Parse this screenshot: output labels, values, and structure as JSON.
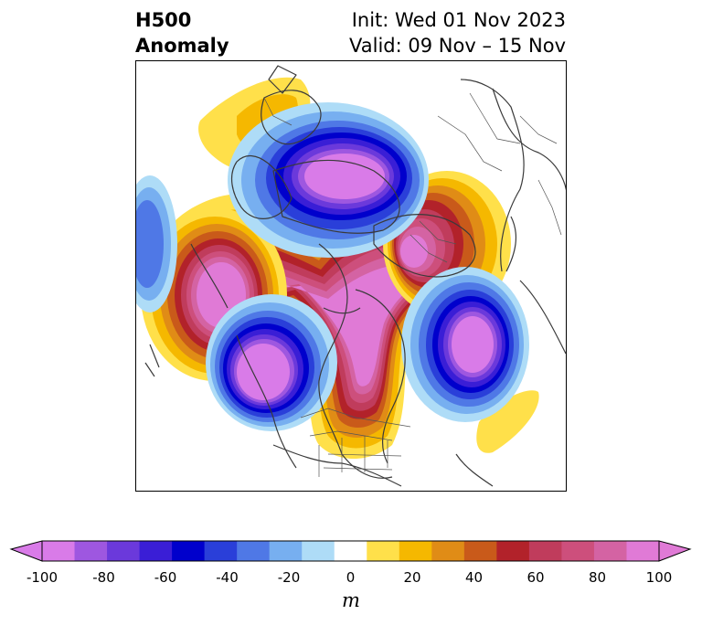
{
  "header": {
    "left_line1": "H500",
    "left_line2": "Anomaly",
    "right_line1": "Init: Wed 01 Nov 2023",
    "right_line2": "Valid: 09 Nov – 15 Nov"
  },
  "colorbar": {
    "unit": "m",
    "ticks": [
      "-100",
      "-80",
      "-60",
      "-40",
      "-20",
      "0",
      "20",
      "40",
      "60",
      "80",
      "100"
    ],
    "levels": [
      -100,
      -90,
      -80,
      -70,
      -60,
      -50,
      -40,
      -30,
      -20,
      -10,
      10,
      20,
      30,
      40,
      50,
      60,
      70,
      80,
      90,
      100
    ],
    "colors": [
      "#d97be8",
      "#9e57e0",
      "#6b39db",
      "#3a1ed6",
      "#0000cc",
      "#2a3fd9",
      "#4f78e6",
      "#77aff0",
      "#aedcf7",
      "#ffffff",
      "#ffe04a",
      "#f5b800",
      "#e08c16",
      "#c95a1a",
      "#b2222a",
      "#c03c5c",
      "#cd4f7c",
      "#d463a3",
      "#e07ad6"
    ],
    "under_color": "#d97be8",
    "over_color": "#e07ad6"
  },
  "map": {
    "projection": "polar-stereographic",
    "field": "500 hPa geopotential height anomaly"
  }
}
